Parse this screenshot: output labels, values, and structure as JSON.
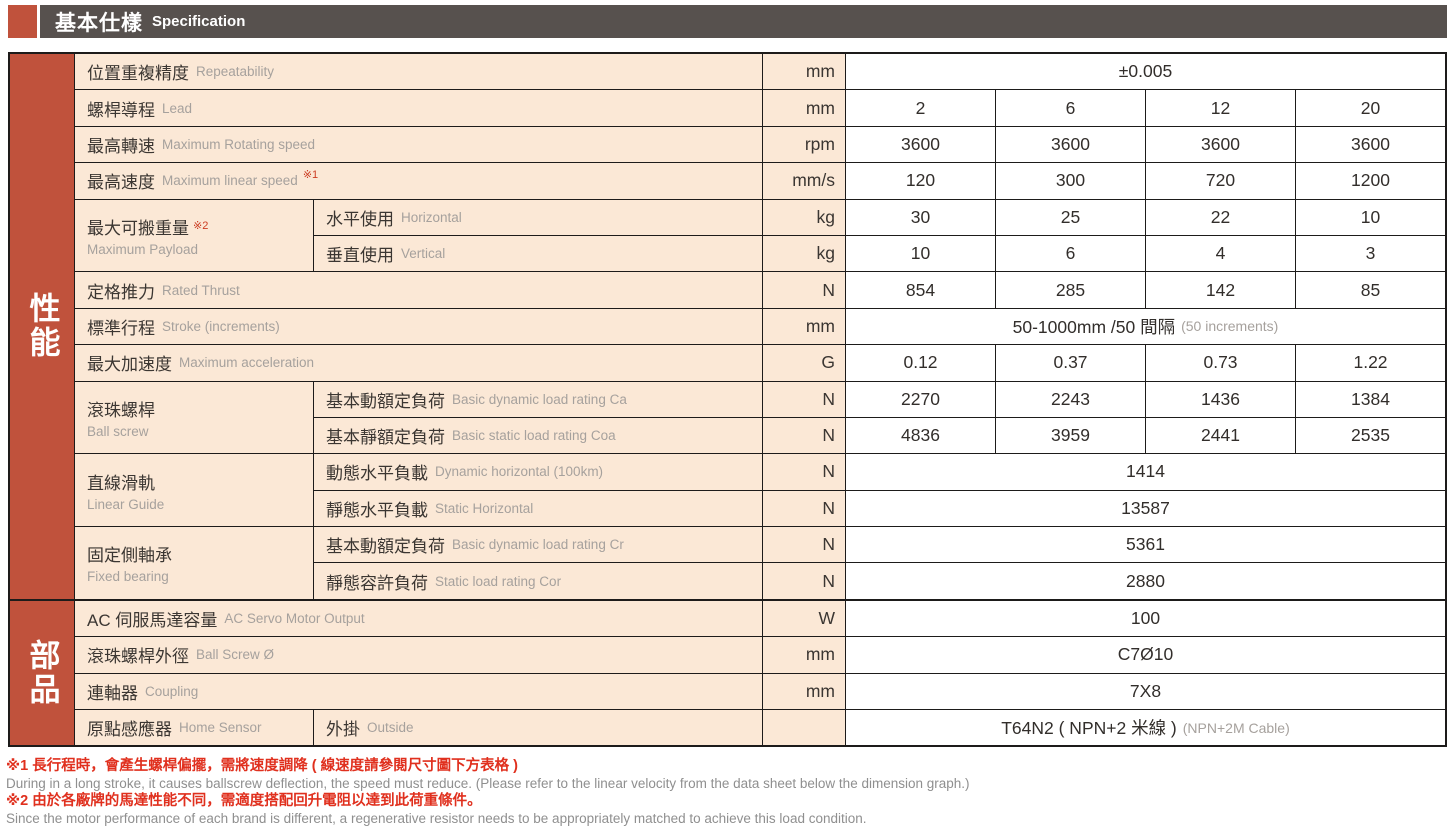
{
  "header": {
    "title_zh": "基本仕樣",
    "title_en": "Specification"
  },
  "colors": {
    "accent_terracotta": "#c0523c",
    "header_bar": "#57514e",
    "cell_cream": "#fbe8d6",
    "border": "#1d1b1a",
    "note_red": "#e0301e",
    "english_gray": "#a6a19d"
  },
  "sections": {
    "performance": "性能",
    "parts": "部品"
  },
  "rows": {
    "repeatability": {
      "zh": "位置重複精度",
      "en": "Repeatability",
      "unit": "mm",
      "value": "±0.005"
    },
    "lead": {
      "zh": "螺桿導程",
      "en": "Lead",
      "unit": "mm",
      "values": [
        "2",
        "6",
        "12",
        "20"
      ]
    },
    "rotating": {
      "zh": "最高轉速",
      "en": "Maximum Rotating speed",
      "unit": "rpm",
      "values": [
        "3600",
        "3600",
        "3600",
        "3600"
      ]
    },
    "linear_speed": {
      "zh": "最高速度",
      "en": "Maximum linear speed",
      "note": "※1",
      "unit": "mm/s",
      "values": [
        "120",
        "300",
        "720",
        "1200"
      ]
    },
    "payload": {
      "zh": "最大可搬重量",
      "note": "※2",
      "en": "Maximum Payload",
      "horizontal": {
        "zh": "水平使用",
        "en": "Horizontal",
        "unit": "kg",
        "values": [
          "30",
          "25",
          "22",
          "10"
        ]
      },
      "vertical": {
        "zh": "垂直使用",
        "en": "Vertical",
        "unit": "kg",
        "values": [
          "10",
          "6",
          "4",
          "3"
        ]
      }
    },
    "thrust": {
      "zh": "定格推力",
      "en": "Rated Thrust",
      "unit": "N",
      "values": [
        "854",
        "285",
        "142",
        "85"
      ]
    },
    "stroke": {
      "zh": "標準行程",
      "en": "Stroke (increments)",
      "unit": "mm",
      "value": "50-1000mm /50 間隔",
      "value_en": "(50 increments)"
    },
    "accel": {
      "zh": "最大加速度",
      "en": "Maximum acceleration",
      "unit": "G",
      "values": [
        "0.12",
        "0.37",
        "0.73",
        "1.22"
      ]
    },
    "ballscrew": {
      "zh": "滾珠螺桿",
      "en": "Ball screw",
      "dynamic": {
        "zh": "基本動額定負荷",
        "en": "Basic dynamic load rating Ca",
        "unit": "N",
        "values": [
          "2270",
          "2243",
          "1436",
          "1384"
        ]
      },
      "static": {
        "zh": "基本靜額定負荷",
        "en": "Basic static load rating Coa",
        "unit": "N",
        "values": [
          "4836",
          "3959",
          "2441",
          "2535"
        ]
      }
    },
    "guide": {
      "zh": "直線滑軌",
      "en": "Linear Guide",
      "dynamic": {
        "zh": "動態水平負載",
        "en": "Dynamic horizontal (100km)",
        "unit": "N",
        "value": "1414"
      },
      "static": {
        "zh": "靜態水平負載",
        "en": "Static Horizontal",
        "unit": "N",
        "value": "13587"
      }
    },
    "bearing": {
      "zh": "固定側軸承",
      "en": "Fixed bearing",
      "dynamic": {
        "zh": "基本動額定負荷",
        "en": "Basic dynamic load rating Cr",
        "unit": "N",
        "value": "5361"
      },
      "static": {
        "zh": "靜態容許負荷",
        "en": "Static load rating Cor",
        "unit": "N",
        "value": "2880"
      }
    },
    "motor": {
      "zh": "AC 伺服馬達容量",
      "en": "AC Servo Motor Output",
      "unit": "W",
      "value": "100"
    },
    "screw_od": {
      "zh": "滾珠螺桿外徑",
      "en": "Ball Screw Ø",
      "unit": "mm",
      "value": "C7Ø10"
    },
    "coupling": {
      "zh": "連軸器",
      "en": "Coupling",
      "unit": "mm",
      "value": "7X8"
    },
    "sensor": {
      "zh": "原點感應器",
      "en": "Home Sensor",
      "sub_zh": "外掛",
      "sub_en": "Outside",
      "unit": "",
      "value": "T64N2 ( NPN+2 米線 )",
      "value_en": "(NPN+2M Cable)"
    }
  },
  "footnotes": [
    {
      "zh": "※1 長行程時，會產生螺桿偏擺，需將速度調降 ( 線速度請參閱尺寸圖下方表格 )",
      "en": "During in a long stroke, it causes ballscrew deflection, the speed must reduce. (Please refer to the linear velocity from the data sheet below the dimension graph.)"
    },
    {
      "zh": "※2 由於各廠牌的馬達性能不同，需適度搭配回升電阻以達到此荷重條件。",
      "en": "Since the motor performance of each brand is different, a regenerative resistor needs to be appropriately matched to achieve this load condition."
    }
  ]
}
